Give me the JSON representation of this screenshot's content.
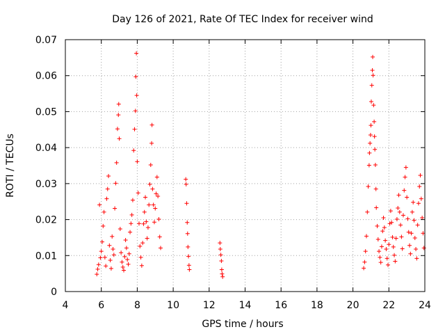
{
  "chart_data": {
    "type": "scatter",
    "title": "Day 126 of 2021, Rate Of TEC Index for receiver wind",
    "xlabel": "GPS time / hours",
    "ylabel": "ROTI / TECUs",
    "xlim": [
      4,
      24
    ],
    "ylim": [
      0,
      0.07
    ],
    "xticks": [
      4,
      6,
      8,
      10,
      12,
      14,
      16,
      18,
      20,
      22,
      24
    ],
    "yticks": [
      0,
      0.01,
      0.02,
      0.03,
      0.04,
      0.05,
      0.06,
      0.07
    ],
    "xtick_labels": [
      "4",
      "6",
      "8",
      "10",
      "12",
      "14",
      "16",
      "18",
      "20",
      "22",
      "24"
    ],
    "ytick_labels": [
      "0",
      "0.01",
      "0.02",
      "0.03",
      "0.04",
      "0.05",
      "0.06",
      "0.07"
    ],
    "grid": true,
    "marker": "plus",
    "color": "#ff0000",
    "series": [
      {
        "points": [
          [
            5.75,
            0.0048
          ],
          [
            5.8,
            0.0062
          ],
          [
            5.85,
            0.0075
          ],
          [
            5.9,
            0.0241
          ],
          [
            5.95,
            0.0094
          ],
          [
            6.0,
            0.0112
          ],
          [
            6.05,
            0.0138
          ],
          [
            6.1,
            0.0182
          ],
          [
            6.15,
            0.0221
          ],
          [
            6.2,
            0.0095
          ],
          [
            6.25,
            0.0071
          ],
          [
            6.3,
            0.0258
          ],
          [
            6.35,
            0.0285
          ],
          [
            6.4,
            0.0321
          ],
          [
            6.45,
            0.0128
          ],
          [
            6.5,
            0.0087
          ],
          [
            6.55,
            0.0064
          ],
          [
            6.6,
            0.0153
          ],
          [
            6.65,
            0.0118
          ],
          [
            6.7,
            0.0102
          ],
          [
            6.75,
            0.0231
          ],
          [
            6.8,
            0.0301
          ],
          [
            6.85,
            0.0358
          ],
          [
            6.9,
            0.0452
          ],
          [
            6.95,
            0.0491
          ],
          [
            6.97,
            0.0521
          ],
          [
            7.0,
            0.0425
          ],
          [
            7.05,
            0.0174
          ],
          [
            7.1,
            0.0108
          ],
          [
            7.15,
            0.0082
          ],
          [
            7.2,
            0.0068
          ],
          [
            7.25,
            0.0059
          ],
          [
            7.3,
            0.0097
          ],
          [
            7.35,
            0.0143
          ],
          [
            7.4,
            0.0121
          ],
          [
            7.45,
            0.0089
          ],
          [
            7.5,
            0.0076
          ],
          [
            7.55,
            0.0105
          ],
          [
            7.6,
            0.0165
          ],
          [
            7.65,
            0.0189
          ],
          [
            7.7,
            0.0213
          ],
          [
            7.75,
            0.0254
          ],
          [
            7.8,
            0.0392
          ],
          [
            7.85,
            0.0451
          ],
          [
            7.9,
            0.0502
          ],
          [
            7.92,
            0.0597
          ],
          [
            7.95,
            0.0662
          ],
          [
            7.97,
            0.0545
          ],
          [
            8.0,
            0.0361
          ],
          [
            8.05,
            0.0274
          ],
          [
            8.1,
            0.0189
          ],
          [
            8.15,
            0.0126
          ],
          [
            8.2,
            0.0095
          ],
          [
            8.25,
            0.0072
          ],
          [
            8.3,
            0.0135
          ],
          [
            8.35,
            0.0188
          ],
          [
            8.4,
            0.0221
          ],
          [
            8.45,
            0.0262
          ],
          [
            8.5,
            0.0194
          ],
          [
            8.55,
            0.0148
          ],
          [
            8.6,
            0.0178
          ],
          [
            8.65,
            0.0241
          ],
          [
            8.7,
            0.0298
          ],
          [
            8.75,
            0.0352
          ],
          [
            8.8,
            0.0412
          ],
          [
            8.82,
            0.0463
          ],
          [
            8.85,
            0.0285
          ],
          [
            8.9,
            0.0241
          ],
          [
            8.95,
            0.0193
          ],
          [
            9.0,
            0.0231
          ],
          [
            9.05,
            0.0272
          ],
          [
            9.1,
            0.0318
          ],
          [
            9.15,
            0.0265
          ],
          [
            9.2,
            0.0201
          ],
          [
            9.25,
            0.0152
          ],
          [
            9.3,
            0.0121
          ],
          [
            10.7,
            0.0312
          ],
          [
            10.72,
            0.0298
          ],
          [
            10.75,
            0.0245
          ],
          [
            10.78,
            0.0192
          ],
          [
            10.8,
            0.0161
          ],
          [
            10.82,
            0.0124
          ],
          [
            10.85,
            0.0098
          ],
          [
            10.88,
            0.0073
          ],
          [
            10.9,
            0.0061
          ],
          [
            12.6,
            0.0135
          ],
          [
            12.62,
            0.0118
          ],
          [
            12.65,
            0.0102
          ],
          [
            12.68,
            0.0085
          ],
          [
            12.7,
            0.0061
          ],
          [
            12.72,
            0.0049
          ],
          [
            12.75,
            0.0041
          ],
          [
            20.6,
            0.0065
          ],
          [
            20.65,
            0.0082
          ],
          [
            20.7,
            0.0112
          ],
          [
            20.75,
            0.0154
          ],
          [
            20.8,
            0.0221
          ],
          [
            20.85,
            0.0292
          ],
          [
            20.9,
            0.0351
          ],
          [
            20.92,
            0.0385
          ],
          [
            20.95,
            0.0412
          ],
          [
            20.98,
            0.0435
          ],
          [
            21.0,
            0.0462
          ],
          [
            21.02,
            0.0528
          ],
          [
            21.05,
            0.0573
          ],
          [
            21.08,
            0.0615
          ],
          [
            21.1,
            0.0652
          ],
          [
            21.12,
            0.0601
          ],
          [
            21.15,
            0.0518
          ],
          [
            21.18,
            0.0472
          ],
          [
            21.2,
            0.0431
          ],
          [
            21.22,
            0.0395
          ],
          [
            21.25,
            0.0352
          ],
          [
            21.28,
            0.0285
          ],
          [
            21.3,
            0.0233
          ],
          [
            21.35,
            0.0182
          ],
          [
            21.4,
            0.0145
          ],
          [
            21.45,
            0.0112
          ],
          [
            21.5,
            0.0095
          ],
          [
            21.55,
            0.0081
          ],
          [
            21.6,
            0.0125
          ],
          [
            21.65,
            0.0168
          ],
          [
            21.7,
            0.0205
          ],
          [
            21.75,
            0.0178
          ],
          [
            21.8,
            0.0142
          ],
          [
            21.85,
            0.0118
          ],
          [
            21.9,
            0.0092
          ],
          [
            21.95,
            0.0074
          ],
          [
            22.0,
            0.0131
          ],
          [
            22.05,
            0.0189
          ],
          [
            22.1,
            0.0224
          ],
          [
            22.15,
            0.0192
          ],
          [
            22.2,
            0.0151
          ],
          [
            22.25,
            0.0124
          ],
          [
            22.3,
            0.0101
          ],
          [
            22.35,
            0.0084
          ],
          [
            22.4,
            0.0148
          ],
          [
            22.45,
            0.0201
          ],
          [
            22.5,
            0.0232
          ],
          [
            22.55,
            0.0268
          ],
          [
            22.6,
            0.0221
          ],
          [
            22.65,
            0.0185
          ],
          [
            22.7,
            0.0152
          ],
          [
            22.75,
            0.0119
          ],
          [
            22.8,
            0.0212
          ],
          [
            22.85,
            0.0281
          ],
          [
            22.9,
            0.0318
          ],
          [
            22.95,
            0.0345
          ],
          [
            23.0,
            0.0262
          ],
          [
            23.05,
            0.0202
          ],
          [
            23.1,
            0.0165
          ],
          [
            23.15,
            0.0128
          ],
          [
            23.2,
            0.0105
          ],
          [
            23.25,
            0.0162
          ],
          [
            23.3,
            0.0221
          ],
          [
            23.35,
            0.0248
          ],
          [
            23.4,
            0.0198
          ],
          [
            23.45,
            0.0149
          ],
          [
            23.5,
            0.0118
          ],
          [
            23.55,
            0.0092
          ],
          [
            23.6,
            0.0185
          ],
          [
            23.65,
            0.0245
          ],
          [
            23.7,
            0.0292
          ],
          [
            23.75,
            0.0323
          ],
          [
            23.8,
            0.0258
          ],
          [
            23.85,
            0.0205
          ],
          [
            23.9,
            0.0162
          ],
          [
            23.95,
            0.0121
          ]
        ]
      }
    ]
  }
}
